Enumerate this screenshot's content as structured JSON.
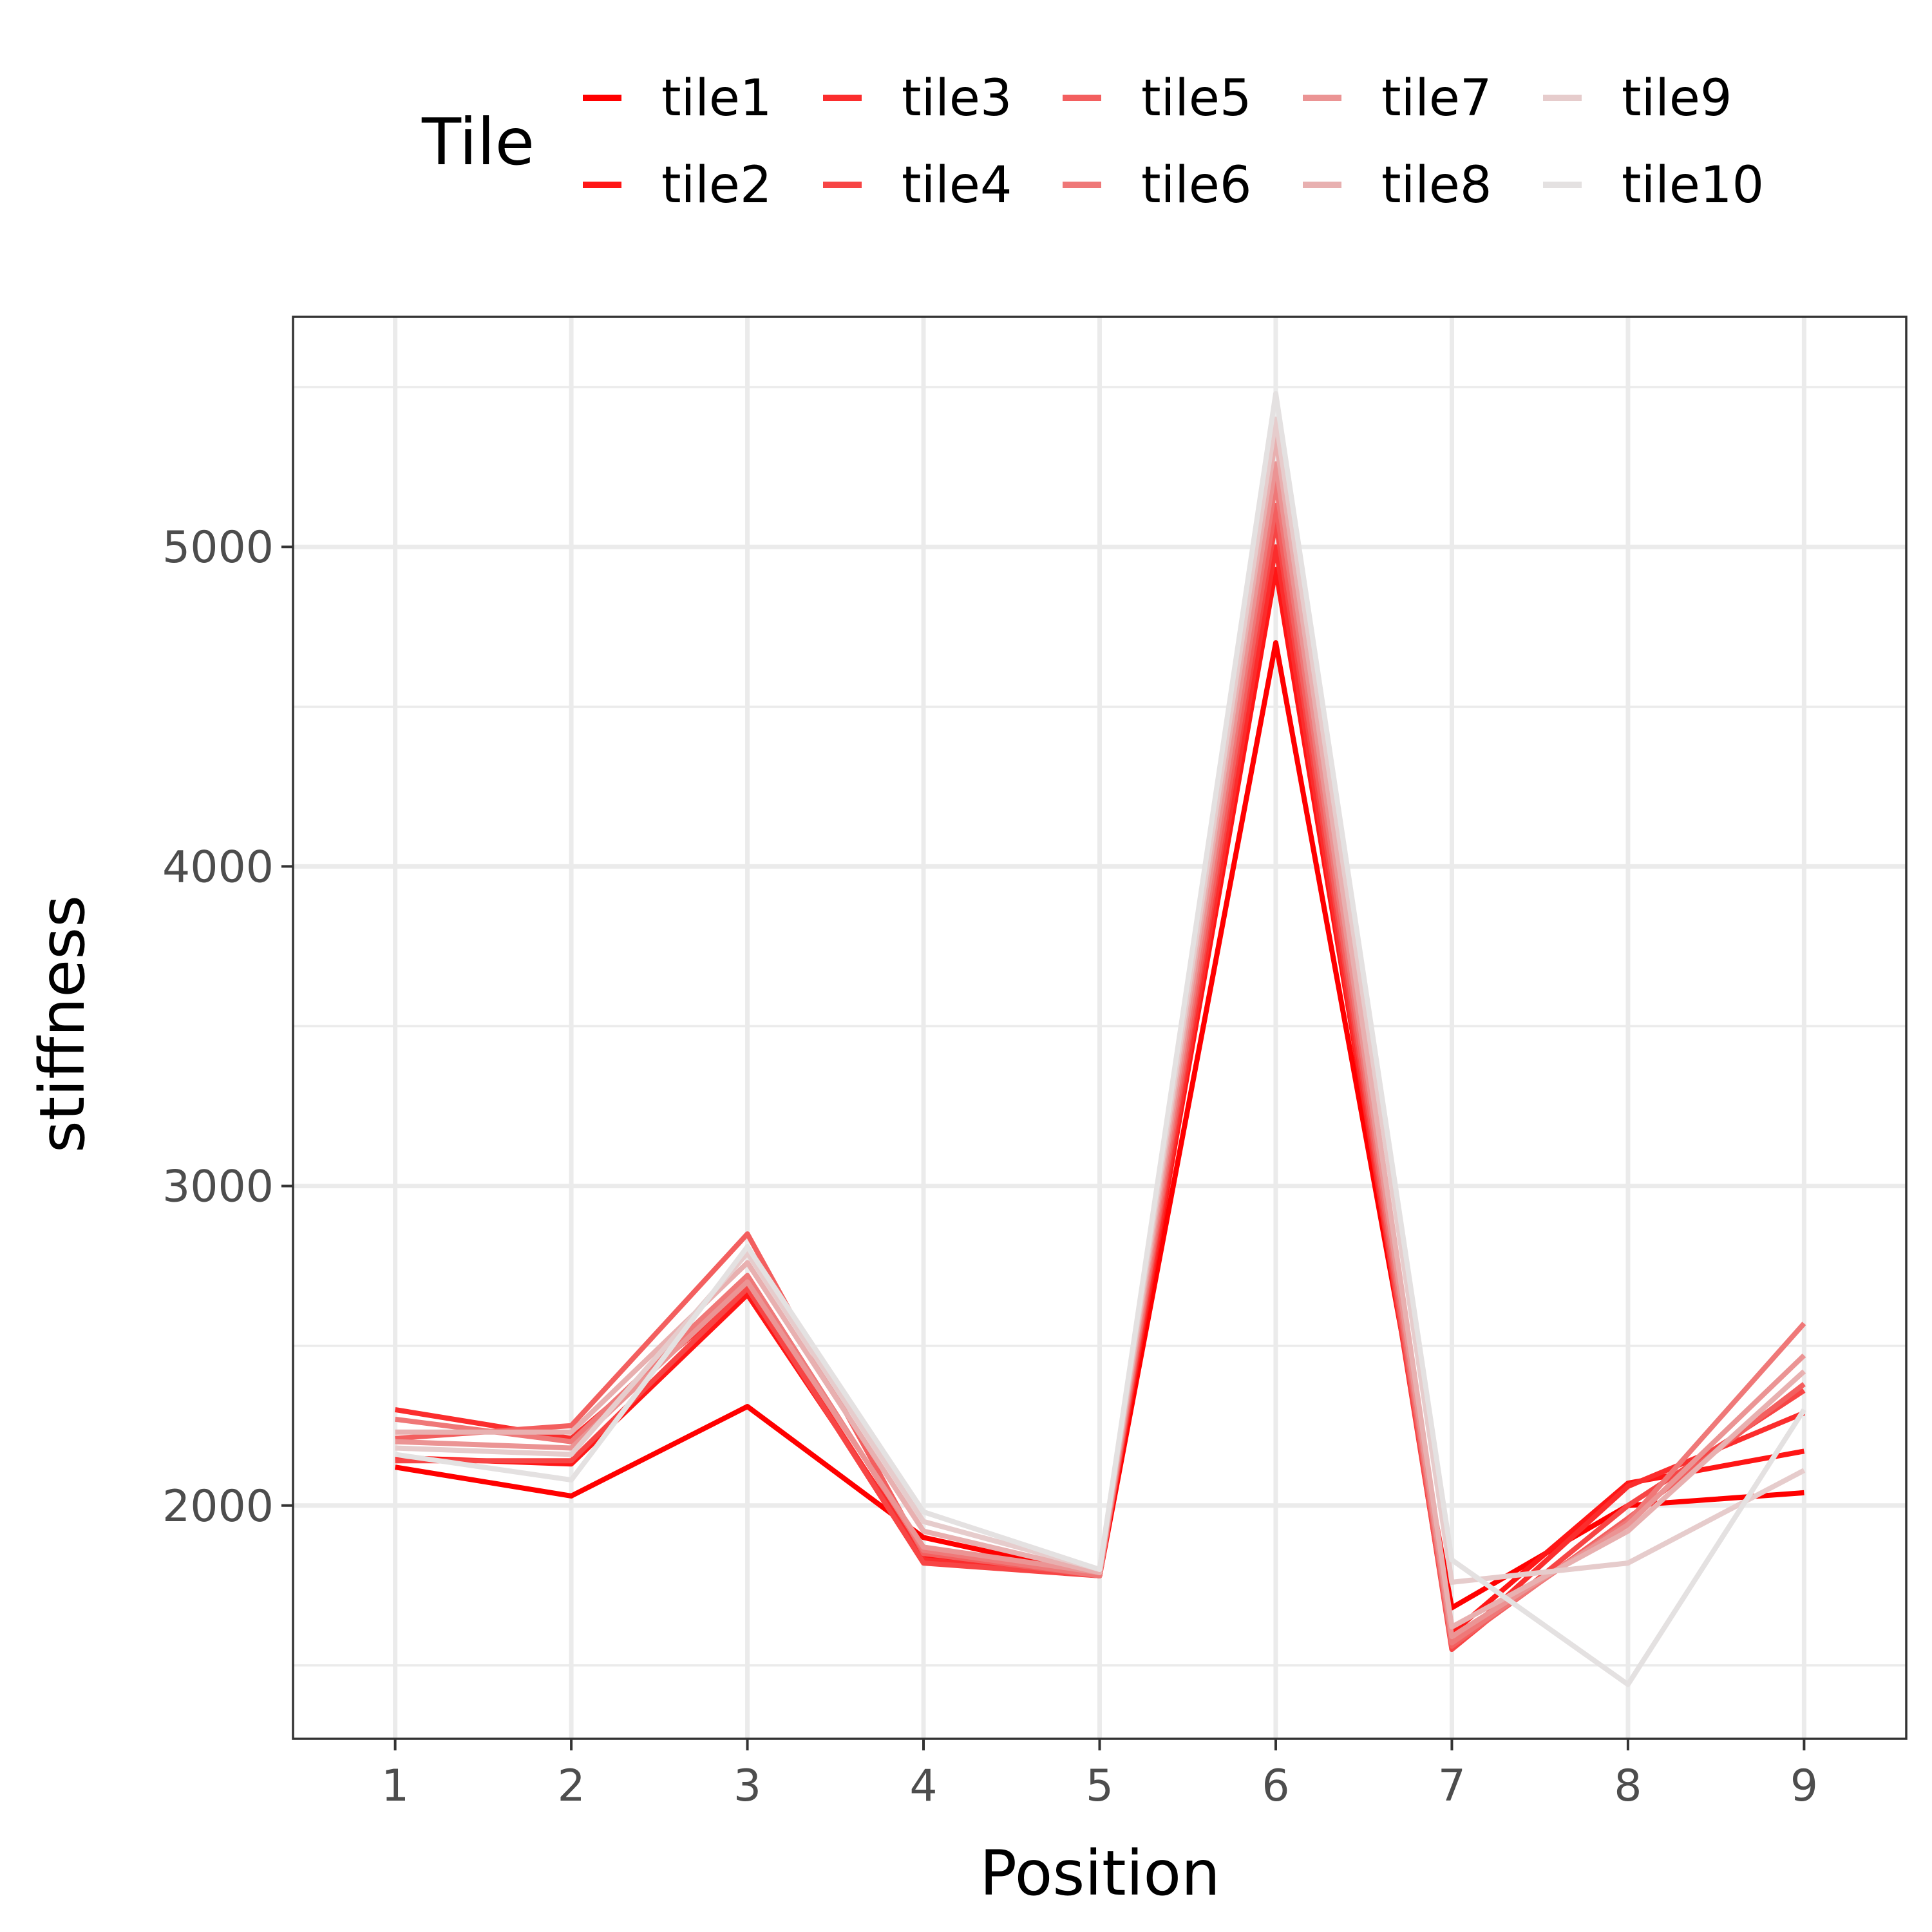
{
  "chart_data": {
    "type": "line",
    "xlabel": "Position",
    "ylabel": "stiffness",
    "x": [
      1,
      2,
      3,
      4,
      5,
      6,
      7,
      8,
      9
    ],
    "xlim": [
      0.42,
      9.58
    ],
    "ylim": [
      1270,
      5720
    ],
    "yticks": [
      2000,
      3000,
      4000,
      5000
    ],
    "grid": true,
    "legend": {
      "title": "Tile",
      "position": "top"
    },
    "series": [
      {
        "name": "tile1",
        "color": "#ff0000",
        "values": [
          2120,
          2030,
          2310,
          1900,
          1780,
          4700,
          1680,
          2000,
          2040
        ]
      },
      {
        "name": "tile2",
        "color": "#ff1616",
        "values": [
          2150,
          2130,
          2660,
          1840,
          1780,
          4930,
          1600,
          2070,
          2170
        ]
      },
      {
        "name": "tile3",
        "color": "#fb2d2d",
        "values": [
          2300,
          2210,
          2680,
          1830,
          1780,
          5000,
          1560,
          2060,
          2290
        ]
      },
      {
        "name": "tile4",
        "color": "#f74545",
        "values": [
          2140,
          2140,
          2680,
          1820,
          1780,
          5080,
          1550,
          2000,
          2360
        ]
      },
      {
        "name": "tile5",
        "color": "#f35f5f",
        "values": [
          2210,
          2250,
          2850,
          1850,
          1780,
          5130,
          1560,
          1960,
          2380
        ]
      },
      {
        "name": "tile6",
        "color": "#ef7878",
        "values": [
          2270,
          2200,
          2720,
          1860,
          1780,
          5200,
          1570,
          1950,
          2570
        ]
      },
      {
        "name": "tile7",
        "color": "#eb9494",
        "values": [
          2200,
          2180,
          2700,
          1870,
          1790,
          5260,
          1590,
          1940,
          2470
        ]
      },
      {
        "name": "tile8",
        "color": "#e8b0b0",
        "values": [
          2230,
          2230,
          2760,
          1920,
          1790,
          5340,
          1620,
          1920,
          2420
        ]
      },
      {
        "name": "tile9",
        "color": "#e6cccc",
        "values": [
          2180,
          2160,
          2790,
          1950,
          1800,
          5400,
          1760,
          1820,
          2110
        ]
      },
      {
        "name": "tile10",
        "color": "#e4e1e1",
        "values": [
          2160,
          2080,
          2810,
          1980,
          1800,
          5480,
          1830,
          1440,
          2300
        ]
      }
    ]
  }
}
